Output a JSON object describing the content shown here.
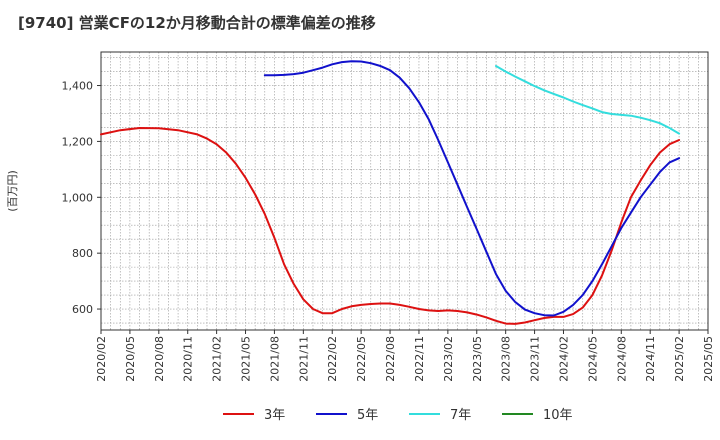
{
  "chart_data": {
    "type": "line",
    "title": "[9740]  営業CFの12か月移動合計の標準偏差の推移",
    "ylabel": "(百万円)",
    "xlabel": "",
    "ylim": [
      525,
      1520
    ],
    "yticks": [
      600,
      800,
      1000,
      1200,
      1400
    ],
    "ytick_labels": [
      "600",
      "800",
      "1,000",
      "1,200",
      "1,400"
    ],
    "xlim": [
      "2020/02",
      "2025/05"
    ],
    "xticks": [
      "2020/02",
      "2020/05",
      "2020/08",
      "2020/11",
      "2021/02",
      "2021/05",
      "2021/08",
      "2021/11",
      "2022/02",
      "2022/05",
      "2022/08",
      "2022/11",
      "2023/02",
      "2023/05",
      "2023/08",
      "2023/11",
      "2024/02",
      "2024/05",
      "2024/08",
      "2024/11",
      "2025/02",
      "2025/05"
    ],
    "grid": true,
    "legend_position": "bottom",
    "series": [
      {
        "name": "3年",
        "color": "#dd1111",
        "x": [
          "2020/02",
          "2020/04",
          "2020/06",
          "2020/08",
          "2020/10",
          "2020/12",
          "2021/01",
          "2021/02",
          "2021/03",
          "2021/04",
          "2021/05",
          "2021/06",
          "2021/07",
          "2021/08",
          "2021/09",
          "2021/10",
          "2021/11",
          "2021/12",
          "2022/01",
          "2022/02",
          "2022/03",
          "2022/04",
          "2022/05",
          "2022/06",
          "2022/07",
          "2022/08",
          "2022/09",
          "2022/10",
          "2022/11",
          "2022/12",
          "2023/01",
          "2023/02",
          "2023/03",
          "2023/04",
          "2023/05",
          "2023/06",
          "2023/07",
          "2023/08",
          "2023/09",
          "2023/10",
          "2023/11",
          "2023/12",
          "2024/01",
          "2024/02",
          "2024/03",
          "2024/04",
          "2024/05",
          "2024/06",
          "2024/07",
          "2024/08",
          "2024/09",
          "2024/10",
          "2024/11",
          "2024/12",
          "2025/01",
          "2025/02"
        ],
        "y": [
          1225,
          1240,
          1248,
          1247,
          1240,
          1225,
          1210,
          1190,
          1160,
          1120,
          1070,
          1010,
          940,
          855,
          760,
          690,
          635,
          600,
          585,
          585,
          600,
          610,
          615,
          618,
          620,
          620,
          615,
          608,
          600,
          595,
          593,
          595,
          593,
          588,
          580,
          570,
          558,
          548,
          547,
          552,
          560,
          568,
          572,
          572,
          582,
          605,
          650,
          720,
          810,
          910,
          1000,
          1060,
          1115,
          1160,
          1190,
          1205
        ]
      },
      {
        "name": "5年",
        "color": "#1111cc",
        "x": [
          "2021/07",
          "2021/08",
          "2021/09",
          "2021/10",
          "2021/11",
          "2021/12",
          "2022/01",
          "2022/02",
          "2022/03",
          "2022/04",
          "2022/05",
          "2022/06",
          "2022/07",
          "2022/08",
          "2022/09",
          "2022/10",
          "2022/11",
          "2022/12",
          "2023/01",
          "2023/02",
          "2023/03",
          "2023/04",
          "2023/05",
          "2023/06",
          "2023/07",
          "2023/08",
          "2023/09",
          "2023/10",
          "2023/11",
          "2023/12",
          "2024/01",
          "2024/02",
          "2024/03",
          "2024/04",
          "2024/05",
          "2024/06",
          "2024/07",
          "2024/08",
          "2024/09",
          "2024/10",
          "2024/11",
          "2024/12",
          "2025/01",
          "2025/02"
        ],
        "y": [
          1437,
          1437,
          1438,
          1441,
          1446,
          1455,
          1464,
          1476,
          1484,
          1487,
          1486,
          1480,
          1470,
          1455,
          1428,
          1390,
          1340,
          1280,
          1205,
          1125,
          1045,
          965,
          885,
          805,
          725,
          665,
          625,
          598,
          585,
          578,
          577,
          590,
          615,
          650,
          700,
          760,
          825,
          890,
          945,
          1000,
          1045,
          1090,
          1125,
          1140
        ]
      },
      {
        "name": "7年",
        "color": "#33dddd",
        "x": [
          "2023/07",
          "2023/08",
          "2023/09",
          "2023/10",
          "2023/11",
          "2023/12",
          "2024/01",
          "2024/02",
          "2024/03",
          "2024/04",
          "2024/05",
          "2024/06",
          "2024/07",
          "2024/08",
          "2024/09",
          "2024/10",
          "2024/11",
          "2024/12",
          "2025/01",
          "2025/02"
        ],
        "y": [
          1470,
          1450,
          1432,
          1415,
          1398,
          1383,
          1370,
          1357,
          1343,
          1330,
          1318,
          1305,
          1298,
          1295,
          1292,
          1285,
          1276,
          1265,
          1248,
          1228
        ]
      },
      {
        "name": "10年",
        "color": "#228822",
        "x": [],
        "y": []
      }
    ]
  }
}
